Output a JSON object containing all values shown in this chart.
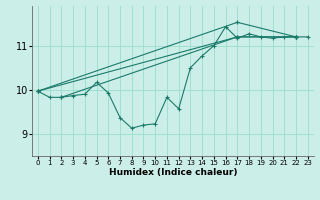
{
  "xlabel": "Humidex (Indice chaleur)",
  "bg_color": "#cceee8",
  "grid_color": "#99ddcc",
  "line_color": "#1a7a6a",
  "xlim": [
    -0.5,
    23.5
  ],
  "ylim": [
    8.5,
    11.9
  ],
  "yticks": [
    9,
    10,
    11
  ],
  "xticks": [
    0,
    1,
    2,
    3,
    4,
    5,
    6,
    7,
    8,
    9,
    10,
    11,
    12,
    13,
    14,
    15,
    16,
    17,
    18,
    19,
    20,
    21,
    22,
    23
  ],
  "lines": [
    {
      "x": [
        0,
        1,
        2,
        3,
        4,
        5,
        6,
        7,
        8,
        9,
        10,
        11,
        12,
        13,
        14,
        15,
        16,
        17,
        18,
        19,
        20,
        21,
        22,
        23
      ],
      "y": [
        9.97,
        9.83,
        9.83,
        9.87,
        9.9,
        10.17,
        9.93,
        9.37,
        9.13,
        9.2,
        9.23,
        9.83,
        9.57,
        10.5,
        10.77,
        11.0,
        11.43,
        11.17,
        11.27,
        11.2,
        11.17,
        11.2,
        11.2,
        11.2
      ]
    },
    {
      "x": [
        0,
        17,
        22
      ],
      "y": [
        9.97,
        11.53,
        11.2
      ]
    },
    {
      "comment": "straight line 2: from (0,~10) to (17,~11.2) to (22,~11.2)",
      "x": [
        0,
        17,
        22
      ],
      "y": [
        9.97,
        11.2,
        11.2
      ]
    },
    {
      "comment": "straight line 3: from (2,~9.83) to (17,~11.2) to (22,~11.2)",
      "x": [
        2,
        17,
        22
      ],
      "y": [
        9.83,
        11.2,
        11.2
      ]
    }
  ]
}
